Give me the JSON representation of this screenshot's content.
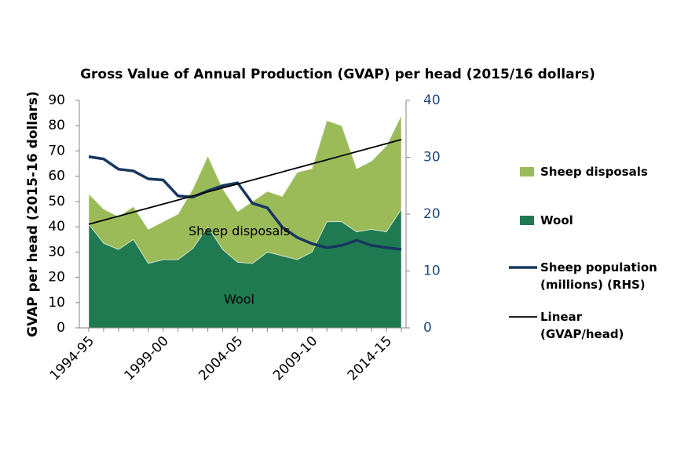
{
  "chart_data": {
    "type": "stacked-area-line",
    "title": "Gross Value of Annual Production (GVAP) per head (2015/16 dollars)",
    "y_label": "GVAP per head (2015-16 dollars)",
    "categories": [
      "1994-95",
      null,
      null,
      null,
      null,
      "1999-00",
      null,
      null,
      null,
      null,
      "2004-05",
      null,
      null,
      null,
      null,
      "2009-10",
      null,
      null,
      null,
      null,
      "2014-15",
      null
    ],
    "series": [
      {
        "name": "Sheep disposals",
        "color": "#9bbb59",
        "kind": "area",
        "values": [
          12,
          13.5,
          13,
          13,
          13.5,
          15,
          18,
          23.5,
          28,
          24,
          20,
          24.5,
          24,
          23.5,
          34.5,
          33,
          40,
          38,
          25,
          27,
          34,
          37
        ]
      },
      {
        "name": "Wool",
        "color": "#1f7a52",
        "kind": "area",
        "values": [
          41,
          33.5,
          31,
          35,
          25.5,
          27,
          27,
          31.5,
          40,
          31,
          26,
          25.5,
          30,
          28.5,
          27,
          30,
          42,
          42,
          38,
          39,
          38,
          47
        ]
      },
      {
        "name": "Sheep population (millions) (RHS)",
        "color": "#17375e",
        "kind": "line",
        "axis": "y2",
        "values": [
          30.1,
          29.7,
          27.9,
          27.6,
          26.2,
          26,
          23.2,
          23,
          24.1,
          25,
          25.5,
          21.9,
          21.1,
          17.7,
          15.9,
          14.8,
          14.1,
          14.5,
          15.4,
          14.5,
          14.1,
          13.8
        ]
      },
      {
        "name": "Linear (GVAP/head)",
        "color": "#000000",
        "kind": "line",
        "values": [
          41,
          42.6,
          44.2,
          45.8,
          47.4,
          49,
          50.6,
          52.2,
          53.8,
          55.4,
          56.9,
          58.5,
          60.1,
          61.7,
          63.3,
          64.9,
          66.5,
          68.1,
          69.7,
          71.3,
          72.9,
          74.5
        ]
      }
    ],
    "annotations": [
      {
        "text": "Sheep disposals",
        "x": "2004-05",
        "y": 38
      },
      {
        "text": "Wool",
        "x": "2004-05",
        "y": 11
      }
    ],
    "ylim": [
      0,
      90
    ],
    "yticks": [
      0,
      10,
      20,
      30,
      40,
      50,
      60,
      70,
      80,
      90
    ],
    "y2lim": [
      0,
      40
    ],
    "y2ticks": [
      0,
      10,
      20,
      30,
      40
    ],
    "y2_color": "#1f497d"
  }
}
